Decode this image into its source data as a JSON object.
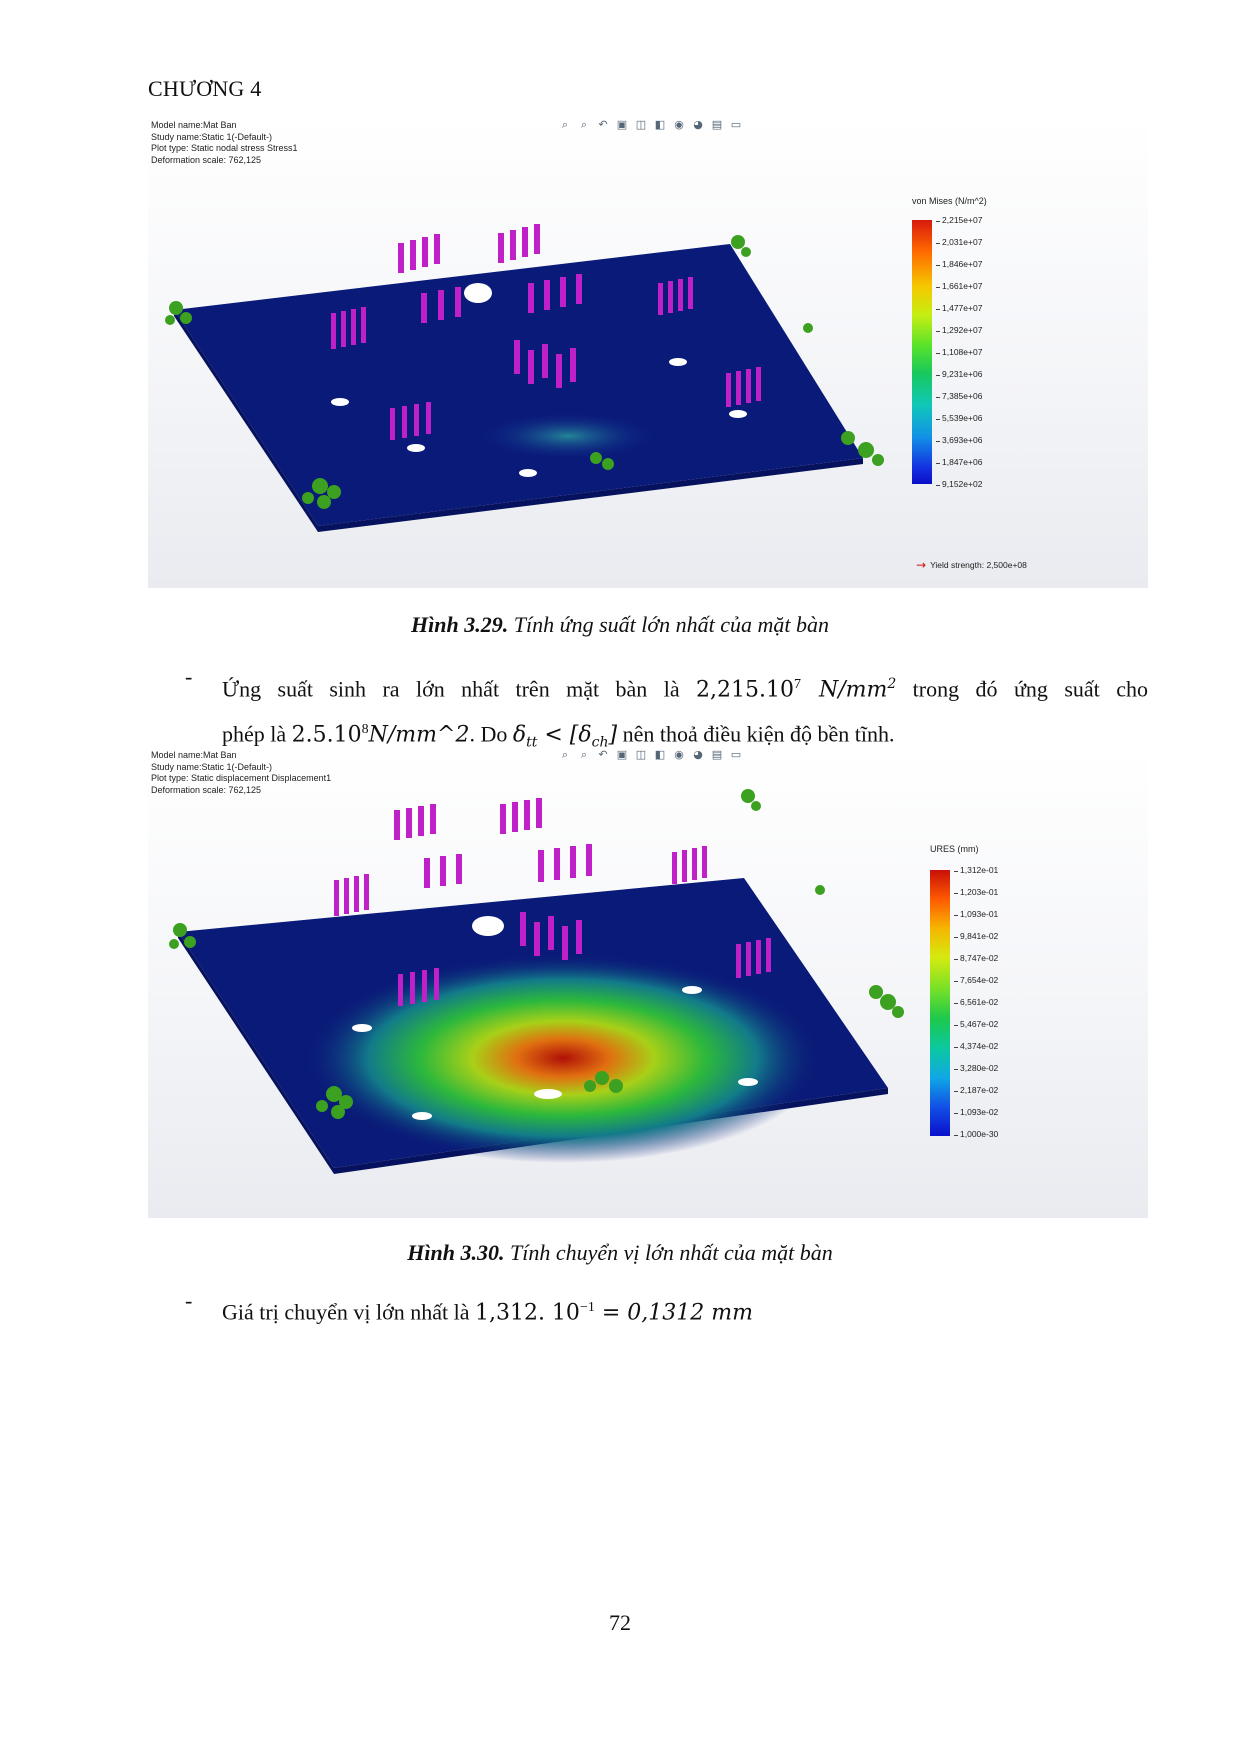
{
  "header": {
    "chapter": "CHƯƠNG 4"
  },
  "figure1": {
    "info": {
      "model": "Model name:Mat Ban",
      "study": "Study name:Static 1(-Default-)",
      "plot_type": "Plot type: Static nodal stress Stress1",
      "deformation": "Deformation scale: 762,125"
    },
    "legend_title": "von Mises (N/m^2)",
    "ticks": [
      "2,215e+07",
      "2,031e+07",
      "1,846e+07",
      "1,661e+07",
      "1,477e+07",
      "1,292e+07",
      "1,108e+07",
      "9,231e+06",
      "7,385e+06",
      "5,539e+06",
      "3,693e+06",
      "1,847e+06",
      "9,152e+02"
    ],
    "yield": "Yield strength: 2,500e+08",
    "caption_label": "Hình 3.29.",
    "caption_text": " Tính ứng suất lớn nhất của mặt bàn"
  },
  "paragraph1": {
    "dash": "-",
    "line1_prefix": "Ứng suất sinh ra lớn nhất trên mặt bàn là ",
    "line1_math": "2,215.10",
    "line1_exp": "7",
    "line1_unit": " N/mm",
    "line1_unit_exp": "2",
    "line1_suffix": " trong đó ứng suất cho",
    "line2_prefix": "phép là ",
    "line2_math": "2.5.10",
    "line2_exp": "8",
    "line2_unit": "N/mm^2",
    "line2_mid": ". Do ",
    "line2_delta": "δ",
    "line2_sub_tt": "tt",
    "line2_lt": " < [δ",
    "line2_sub_ch": "ch",
    "line2_close": "]",
    "line2_suffix": " nên thoả điều kiện độ bền tĩnh."
  },
  "figure2": {
    "info": {
      "model": "Model name:Mat Ban",
      "study": "Study name:Static 1(-Default-)",
      "plot_type": "Plot type: Static displacement Displacement1",
      "deformation": "Deformation scale: 762,125"
    },
    "legend_title": "URES (mm)",
    "ticks": [
      "1,312e-01",
      "1,203e-01",
      "1,093e-01",
      "9,841e-02",
      "8,747e-02",
      "7,654e-02",
      "6,561e-02",
      "5,467e-02",
      "4,374e-02",
      "3,280e-02",
      "2,187e-02",
      "1,093e-02",
      "1,000e-30"
    ],
    "caption_label": "Hình 3.30.",
    "caption_text": " Tính chuyển vị lớn nhất của mặt bàn"
  },
  "paragraph2": {
    "dash": "-",
    "prefix": "Giá trị chuyển vị lớn nhất là ",
    "math": "1,312. 10",
    "exp": "−1",
    "equals": " = 0,1312 mm"
  },
  "footer": {
    "page": "72"
  },
  "toolbar_icons": [
    "zoom-fit-icon",
    "zoom-area-icon",
    "previous-view-icon",
    "section-view-icon",
    "view-orientation-icon",
    "display-style-icon",
    "hide-show-icon",
    "edit-appearance-icon",
    "apply-scene-icon",
    "view-settings-icon"
  ]
}
